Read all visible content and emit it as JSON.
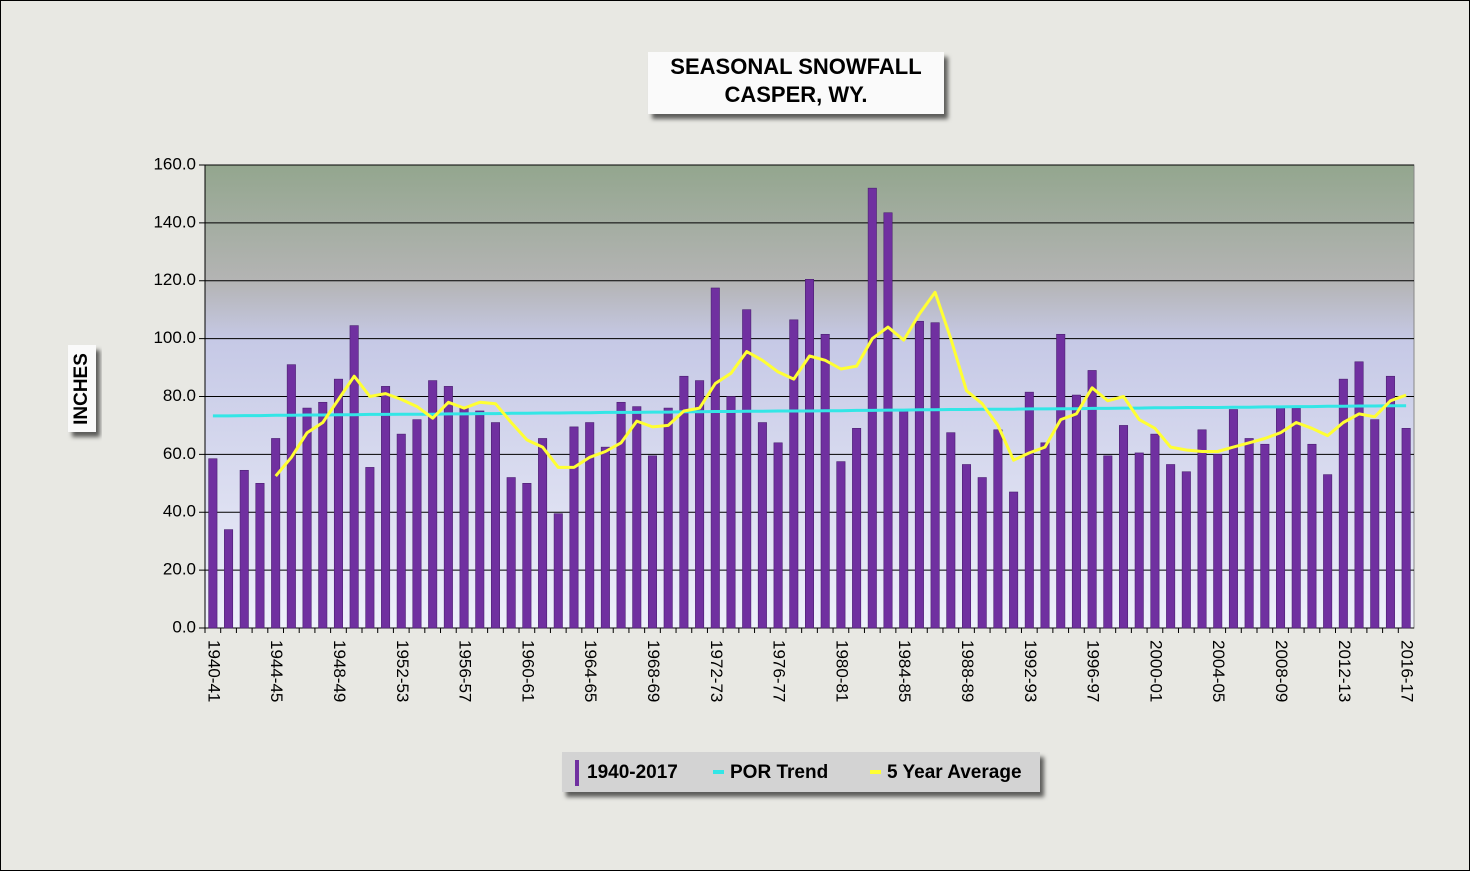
{
  "chart_data": {
    "type": "bar",
    "title": [
      "SEASONAL SNOWFALL",
      "CASPER, WY."
    ],
    "y_label": "INCHES",
    "categories": [
      "1940-41",
      null,
      null,
      null,
      "1944-45",
      null,
      null,
      null,
      "1948-49",
      null,
      null,
      null,
      "1952-53",
      null,
      null,
      null,
      "1956-57",
      null,
      null,
      null,
      "1960-61",
      null,
      null,
      null,
      "1964-65",
      null,
      null,
      null,
      "1968-69",
      null,
      null,
      null,
      "1972-73",
      null,
      null,
      null,
      "1976-77",
      null,
      null,
      null,
      "1980-81",
      null,
      null,
      null,
      "1984-85",
      null,
      null,
      null,
      "1988-89",
      null,
      null,
      null,
      "1992-93",
      null,
      null,
      null,
      "1996-97",
      null,
      null,
      null,
      "2000-01",
      null,
      null,
      null,
      "2004-05",
      null,
      null,
      null,
      "2008-09",
      null,
      null,
      null,
      "2012-13",
      null,
      null,
      null,
      "2016-17"
    ],
    "series": [
      {
        "name": "1940-2017",
        "type": "bar",
        "color": "#7030a0",
        "values": [
          58.5,
          34,
          54.5,
          50,
          65.5,
          91,
          76,
          78,
          86,
          104.5,
          55.5,
          83.5,
          67,
          72,
          85.5,
          83.5,
          76,
          75,
          71,
          52,
          50,
          65.5,
          39.5,
          69.5,
          71,
          62.5,
          78,
          76.5,
          59.5,
          76,
          87,
          85.5,
          117.5,
          80,
          110,
          71,
          64,
          106.5,
          120.5,
          101.5,
          57.5,
          69,
          152,
          143.5,
          75,
          106,
          105.5,
          67.5,
          56.5,
          52,
          68.5,
          47,
          81.5,
          64,
          101.5,
          80.5,
          89,
          59.5,
          70,
          60.5,
          67,
          56.5,
          54,
          68.5,
          60,
          75.5,
          65.5,
          63.5,
          76,
          76,
          63.5,
          53,
          86,
          92,
          72,
          87,
          69
        ]
      },
      {
        "name": "POR Trend",
        "type": "line",
        "color": "#33e6e6",
        "values": [
          73.3,
          73.3,
          73.4,
          73.4,
          73.5,
          73.5,
          73.6,
          73.6,
          73.7,
          73.7,
          73.8,
          73.8,
          73.9,
          73.9,
          73.9,
          74.0,
          74.0,
          74.1,
          74.1,
          74.2,
          74.2,
          74.3,
          74.3,
          74.4,
          74.4,
          74.5,
          74.5,
          74.5,
          74.6,
          74.6,
          74.7,
          74.7,
          74.8,
          74.8,
          74.9,
          74.9,
          75.0,
          75.0,
          75.0,
          75.1,
          75.1,
          75.2,
          75.2,
          75.3,
          75.3,
          75.4,
          75.4,
          75.5,
          75.5,
          75.6,
          75.6,
          75.6,
          75.7,
          75.7,
          75.8,
          75.8,
          75.9,
          75.9,
          76.0,
          76.0,
          76.1,
          76.1,
          76.2,
          76.2,
          76.2,
          76.3,
          76.3,
          76.4,
          76.4,
          76.5,
          76.5,
          76.6,
          76.6,
          76.7,
          76.7,
          76.8,
          76.8
        ]
      },
      {
        "name": "5 Year Average",
        "type": "line",
        "color": "#ffff33",
        "values": [
          null,
          null,
          null,
          null,
          52.5,
          59,
          67.5,
          71,
          79,
          87,
          80,
          81,
          79,
          76.5,
          72.5,
          78,
          76,
          78,
          77.5,
          71,
          65,
          62.5,
          55.5,
          55.5,
          59,
          61,
          64,
          71.5,
          69.5,
          70,
          75,
          76,
          84.5,
          88,
          95.5,
          92.5,
          88.5,
          86,
          94,
          92.5,
          89.5,
          90.5,
          100,
          104,
          99.5,
          108.5,
          116,
          100,
          82,
          77.5,
          70,
          58,
          60.5,
          62.5,
          72,
          74,
          83,
          78.5,
          80,
          72,
          69,
          62.5,
          61.5,
          61,
          61,
          62.5,
          64,
          65.5,
          67.5,
          71,
          69,
          66.5,
          71,
          74,
          73,
          78.5,
          80.5
        ]
      }
    ],
    "ylim": [
      0,
      160
    ],
    "yticks": [
      {
        "value": 0,
        "label": "0.0"
      },
      {
        "value": 20,
        "label": "20.0"
      },
      {
        "value": 40,
        "label": "40.0"
      },
      {
        "value": 60,
        "label": "60.0"
      },
      {
        "value": 80,
        "label": "80.0"
      },
      {
        "value": 100,
        "label": "100.0"
      },
      {
        "value": 120,
        "label": "120.0"
      },
      {
        "value": 140,
        "label": "140.0"
      },
      {
        "value": 160,
        "label": "160.0"
      }
    ],
    "grid": true
  }
}
